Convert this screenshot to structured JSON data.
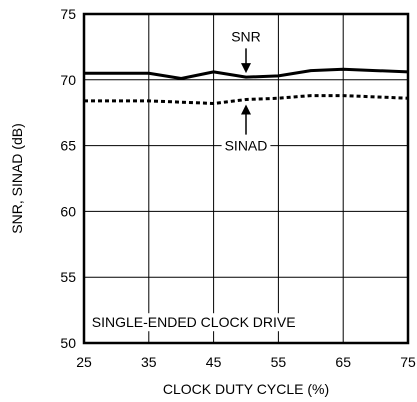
{
  "chart_data": {
    "type": "line",
    "xlabel": "CLOCK DUTY CYCLE (%)",
    "ylabel": "SNR, SINAD (dB)",
    "xlim": [
      25,
      75
    ],
    "ylim": [
      50,
      75
    ],
    "xticks": [
      25,
      35,
      45,
      55,
      65,
      75
    ],
    "yticks": [
      50,
      55,
      60,
      65,
      70,
      75
    ],
    "grid": true,
    "x": [
      25,
      30,
      35,
      40,
      45,
      50,
      55,
      60,
      65,
      70,
      75
    ],
    "series": [
      {
        "name": "SNR",
        "style": "solid",
        "values": [
          70.5,
          70.5,
          70.5,
          70.1,
          70.6,
          70.2,
          70.3,
          70.7,
          70.8,
          70.7,
          70.6
        ]
      },
      {
        "name": "SINAD",
        "style": "dotted",
        "values": [
          68.4,
          68.4,
          68.4,
          68.3,
          68.2,
          68.5,
          68.6,
          68.8,
          68.8,
          68.7,
          68.6
        ]
      }
    ],
    "annotations": [
      {
        "text": "SNR",
        "series": "SNR",
        "arrow_x": 50,
        "label_y": 73.3
      },
      {
        "text": "SINAD",
        "series": "SINAD",
        "arrow_x": 50,
        "label_y": 65.0
      },
      {
        "text": "SINGLE-ENDED CLOCK DRIVE",
        "x": 26.2,
        "y": 51.2
      }
    ],
    "colors": {
      "lines": "#000000",
      "grid": "#000000",
      "background": "#ffffff"
    }
  }
}
